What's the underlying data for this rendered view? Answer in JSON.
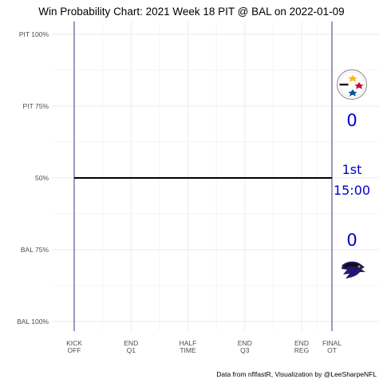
{
  "chart_data": {
    "type": "line",
    "title": "Win Probability Chart: 2021 Week 18 PIT @ BAL on 2022-01-09",
    "caption": "Data from nflfastR, Visualization by @LeeSharpeNFL",
    "xlabel": "",
    "ylabel": "",
    "y_ticks": [
      {
        "value": 1.0,
        "label": "PIT 100%"
      },
      {
        "value": 0.75,
        "label": "PIT 75%"
      },
      {
        "value": 0.5,
        "label": "50%"
      },
      {
        "value": 0.25,
        "label": "BAL 75%"
      },
      {
        "value": 0.0,
        "label": "BAL 100%"
      }
    ],
    "ylim": [
      0,
      1
    ],
    "x_ticks": [
      {
        "value": 0,
        "line1": "KICK",
        "line2": "OFF"
      },
      {
        "value": 15,
        "line1": "END",
        "line2": "Q1"
      },
      {
        "value": 30,
        "line1": "HALF",
        "line2": "TIME"
      },
      {
        "value": 45,
        "line1": "END",
        "line2": "Q3"
      },
      {
        "value": 60,
        "line1": "END",
        "line2": "REG"
      },
      {
        "value": 68,
        "line1": "FINAL",
        "line2": "OT"
      }
    ],
    "xlim": [
      0,
      68
    ],
    "vertical_lines": [
      0,
      68
    ],
    "series": [
      {
        "x": [
          0,
          68
        ],
        "y": [
          0.5,
          0.5
        ]
      }
    ],
    "grid": true,
    "away_team": {
      "abbr": "PIT",
      "score": "0",
      "color": "#0000cc",
      "logo": "steelers-logo"
    },
    "home_team": {
      "abbr": "BAL",
      "score": "0",
      "color": "#0000cc",
      "logo": "ravens-logo"
    },
    "game_clock": {
      "quarter": "1st",
      "time": "15:00",
      "color": "#0000cc"
    },
    "colors": {
      "wp_line": "#000000",
      "vline": "#1f1f6e",
      "grid": "#ebebeb"
    }
  }
}
